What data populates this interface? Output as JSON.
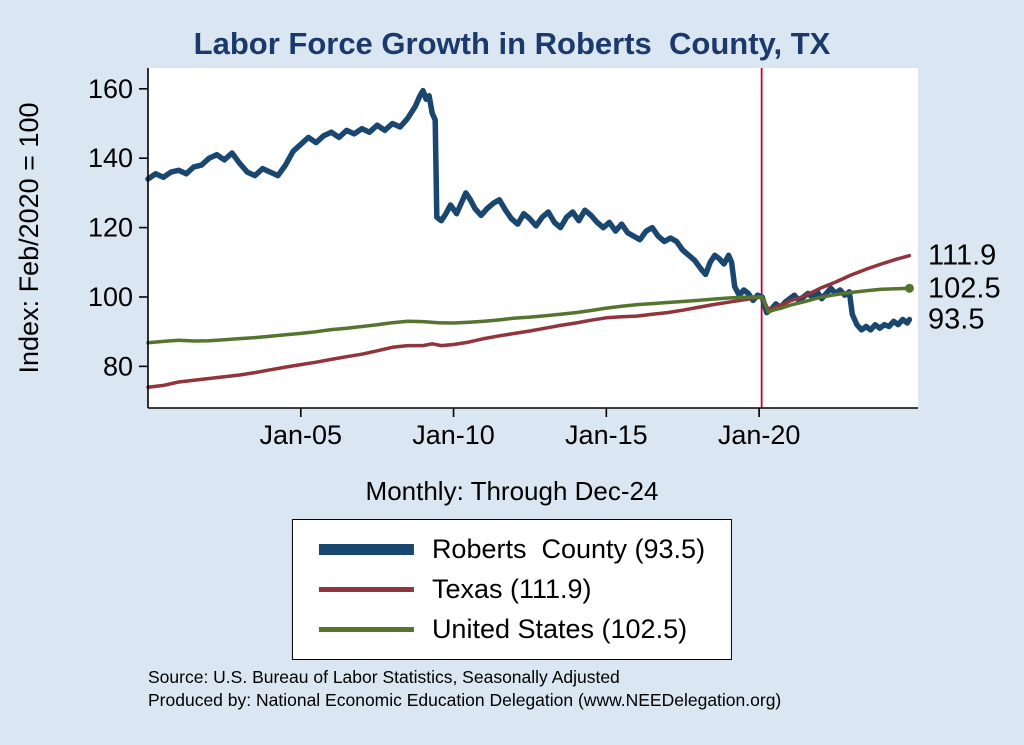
{
  "title": "Labor Force Growth in Roberts  County, TX",
  "subtitle": "Monthly: Through Dec-24",
  "ylabel": "Index: Feb/2020 = 100",
  "source": {
    "line1": "Source: U.S. Bureau of Labor Statistics, Seasonally Adjusted",
    "line2": "Produced by: National Economic Education Delegation (www.NEEDelegation.org)"
  },
  "colors": {
    "background": "#dae6f1",
    "title": "#1b3a6b",
    "axis": "#000000",
    "plot_background": "#ffffff"
  },
  "chart_data": {
    "type": "line",
    "title": "Labor Force Growth in Roberts  County, TX",
    "xlabel": "",
    "ylabel": "Index: Feb/2020 = 100",
    "xlim": [
      2000,
      2025.2
    ],
    "ylim": [
      68,
      166
    ],
    "grid": false,
    "legend_position": "bottom",
    "yticks": [
      80,
      100,
      120,
      140,
      160
    ],
    "xticks": [
      {
        "x": 2005,
        "label": "Jan-05"
      },
      {
        "x": 2010,
        "label": "Jan-10"
      },
      {
        "x": 2015,
        "label": "Jan-15"
      },
      {
        "x": 2020,
        "label": "Jan-20"
      }
    ],
    "vline": {
      "x": 2020.083,
      "color": "#c10534",
      "meaning": "Feb-2020 reference line"
    },
    "series": [
      {
        "name": "Roberts  County (93.5)",
        "color": "#1a476f",
        "width": 5.5,
        "end_label": "93.5",
        "points": [
          [
            2000.0,
            134
          ],
          [
            2000.25,
            135.5
          ],
          [
            2000.5,
            134.5
          ],
          [
            2000.75,
            136
          ],
          [
            2001.0,
            136.5
          ],
          [
            2001.25,
            135.5
          ],
          [
            2001.5,
            137.5
          ],
          [
            2001.75,
            138
          ],
          [
            2002.0,
            140
          ],
          [
            2002.25,
            141
          ],
          [
            2002.5,
            139.5
          ],
          [
            2002.75,
            141.5
          ],
          [
            2003.0,
            138.5
          ],
          [
            2003.25,
            136
          ],
          [
            2003.5,
            135
          ],
          [
            2003.75,
            137
          ],
          [
            2004.0,
            136
          ],
          [
            2004.25,
            135
          ],
          [
            2004.5,
            138
          ],
          [
            2004.75,
            142
          ],
          [
            2005.0,
            144
          ],
          [
            2005.25,
            146
          ],
          [
            2005.5,
            144.5
          ],
          [
            2005.75,
            146.5
          ],
          [
            2006.0,
            147.5
          ],
          [
            2006.25,
            146
          ],
          [
            2006.5,
            148
          ],
          [
            2006.75,
            147
          ],
          [
            2007.0,
            148.5
          ],
          [
            2007.25,
            147.5
          ],
          [
            2007.5,
            149.5
          ],
          [
            2007.75,
            148
          ],
          [
            2008.0,
            150
          ],
          [
            2008.25,
            149
          ],
          [
            2008.5,
            151.5
          ],
          [
            2008.75,
            155
          ],
          [
            2008.9,
            158
          ],
          [
            2009.0,
            159.5
          ],
          [
            2009.1,
            157
          ],
          [
            2009.2,
            158
          ],
          [
            2009.3,
            153
          ],
          [
            2009.4,
            151
          ],
          [
            2009.45,
            123
          ],
          [
            2009.6,
            122
          ],
          [
            2009.75,
            124
          ],
          [
            2009.9,
            126.5
          ],
          [
            2010.1,
            124
          ],
          [
            2010.25,
            127
          ],
          [
            2010.4,
            130
          ],
          [
            2010.55,
            128
          ],
          [
            2010.7,
            125.5
          ],
          [
            2010.9,
            123.5
          ],
          [
            2011.1,
            125.5
          ],
          [
            2011.3,
            127
          ],
          [
            2011.5,
            128
          ],
          [
            2011.7,
            125
          ],
          [
            2011.9,
            122.5
          ],
          [
            2012.1,
            121
          ],
          [
            2012.3,
            124
          ],
          [
            2012.5,
            122.5
          ],
          [
            2012.7,
            120.5
          ],
          [
            2012.9,
            123
          ],
          [
            2013.1,
            124.5
          ],
          [
            2013.3,
            121.5
          ],
          [
            2013.5,
            120
          ],
          [
            2013.7,
            123
          ],
          [
            2013.9,
            124.5
          ],
          [
            2014.1,
            122
          ],
          [
            2014.3,
            125
          ],
          [
            2014.5,
            123.5
          ],
          [
            2014.7,
            121.5
          ],
          [
            2014.9,
            120
          ],
          [
            2015.1,
            121.5
          ],
          [
            2015.3,
            119
          ],
          [
            2015.5,
            121
          ],
          [
            2015.7,
            118.5
          ],
          [
            2015.9,
            117.5
          ],
          [
            2016.1,
            116.5
          ],
          [
            2016.3,
            119
          ],
          [
            2016.5,
            120
          ],
          [
            2016.7,
            117.5
          ],
          [
            2016.9,
            116
          ],
          [
            2017.1,
            117
          ],
          [
            2017.3,
            116
          ],
          [
            2017.5,
            113.5
          ],
          [
            2017.7,
            112
          ],
          [
            2017.9,
            110.5
          ],
          [
            2018.1,
            108
          ],
          [
            2018.25,
            106.5
          ],
          [
            2018.4,
            110
          ],
          [
            2018.55,
            112
          ],
          [
            2018.7,
            111
          ],
          [
            2018.85,
            109.5
          ],
          [
            2019.0,
            112
          ],
          [
            2019.1,
            110
          ],
          [
            2019.2,
            103
          ],
          [
            2019.35,
            100.5
          ],
          [
            2019.5,
            102
          ],
          [
            2019.65,
            101
          ],
          [
            2019.8,
            99
          ],
          [
            2019.95,
            100.5
          ],
          [
            2020.1,
            100
          ],
          [
            2020.25,
            95.5
          ],
          [
            2020.4,
            96.5
          ],
          [
            2020.55,
            98
          ],
          [
            2020.7,
            97
          ],
          [
            2020.85,
            98.5
          ],
          [
            2021.0,
            99.5
          ],
          [
            2021.15,
            100.5
          ],
          [
            2021.3,
            99
          ],
          [
            2021.45,
            100
          ],
          [
            2021.6,
            101
          ],
          [
            2021.75,
            100
          ],
          [
            2021.9,
            101.5
          ],
          [
            2022.05,
            99.5
          ],
          [
            2022.2,
            101
          ],
          [
            2022.35,
            102.5
          ],
          [
            2022.5,
            101
          ],
          [
            2022.65,
            102
          ],
          [
            2022.8,
            100.5
          ],
          [
            2022.95,
            101.5
          ],
          [
            2023.05,
            95
          ],
          [
            2023.2,
            92
          ],
          [
            2023.35,
            90.5
          ],
          [
            2023.5,
            91.5
          ],
          [
            2023.65,
            90.5
          ],
          [
            2023.8,
            92
          ],
          [
            2023.95,
            91
          ],
          [
            2024.1,
            92
          ],
          [
            2024.25,
            91.5
          ],
          [
            2024.4,
            93
          ],
          [
            2024.55,
            92
          ],
          [
            2024.7,
            93.5
          ],
          [
            2024.85,
            92.5
          ],
          [
            2024.92,
            93.5
          ]
        ]
      },
      {
        "name": "Texas (111.9)",
        "color": "#90353b",
        "width": 3.5,
        "end_label": "111.9",
        "points": [
          [
            2000,
            74
          ],
          [
            2000.5,
            74.5
          ],
          [
            2001,
            75.5
          ],
          [
            2001.5,
            76
          ],
          [
            2002,
            76.5
          ],
          [
            2002.5,
            77
          ],
          [
            2003,
            77.5
          ],
          [
            2003.5,
            78.2
          ],
          [
            2004,
            79
          ],
          [
            2004.5,
            79.8
          ],
          [
            2005,
            80.5
          ],
          [
            2005.5,
            81.2
          ],
          [
            2006,
            82
          ],
          [
            2006.5,
            82.8
          ],
          [
            2007,
            83.5
          ],
          [
            2007.5,
            84.5
          ],
          [
            2008,
            85.5
          ],
          [
            2008.5,
            86
          ],
          [
            2009,
            86
          ],
          [
            2009.3,
            86.5
          ],
          [
            2009.6,
            86
          ],
          [
            2010,
            86.3
          ],
          [
            2010.5,
            87
          ],
          [
            2011,
            88
          ],
          [
            2011.5,
            88.8
          ],
          [
            2012,
            89.5
          ],
          [
            2012.5,
            90.2
          ],
          [
            2013,
            91
          ],
          [
            2013.5,
            91.8
          ],
          [
            2014,
            92.5
          ],
          [
            2014.5,
            93.3
          ],
          [
            2015,
            94
          ],
          [
            2015.5,
            94.3
          ],
          [
            2016,
            94.5
          ],
          [
            2016.5,
            95
          ],
          [
            2017,
            95.5
          ],
          [
            2017.5,
            96.2
          ],
          [
            2018,
            97
          ],
          [
            2018.5,
            97.8
          ],
          [
            2019,
            98.5
          ],
          [
            2019.5,
            99.2
          ],
          [
            2020.1,
            100
          ],
          [
            2020.3,
            96.3
          ],
          [
            2020.5,
            97
          ],
          [
            2020.8,
            98
          ],
          [
            2021,
            98.8
          ],
          [
            2021.5,
            100.3
          ],
          [
            2022,
            102.5
          ],
          [
            2022.5,
            104.3
          ],
          [
            2023,
            106.3
          ],
          [
            2023.5,
            108
          ],
          [
            2024,
            109.5
          ],
          [
            2024.5,
            110.9
          ],
          [
            2024.92,
            111.9
          ]
        ]
      },
      {
        "name": "United States (102.5)",
        "color": "#55752f",
        "width": 3.5,
        "end_label": "102.5",
        "end_dot": true,
        "points": [
          [
            2000,
            86.8
          ],
          [
            2000.5,
            87.2
          ],
          [
            2001,
            87.5
          ],
          [
            2001.5,
            87.3
          ],
          [
            2002,
            87.4
          ],
          [
            2002.5,
            87.7
          ],
          [
            2003,
            88
          ],
          [
            2003.5,
            88.3
          ],
          [
            2004,
            88.7
          ],
          [
            2004.5,
            89.1
          ],
          [
            2005,
            89.5
          ],
          [
            2005.5,
            90
          ],
          [
            2006,
            90.6
          ],
          [
            2006.5,
            91
          ],
          [
            2007,
            91.5
          ],
          [
            2007.5,
            92
          ],
          [
            2008,
            92.6
          ],
          [
            2008.5,
            93
          ],
          [
            2009,
            92.9
          ],
          [
            2009.5,
            92.6
          ],
          [
            2010,
            92.5
          ],
          [
            2010.5,
            92.7
          ],
          [
            2011,
            93
          ],
          [
            2011.5,
            93.4
          ],
          [
            2012,
            93.9
          ],
          [
            2012.5,
            94.2
          ],
          [
            2013,
            94.6
          ],
          [
            2013.5,
            95
          ],
          [
            2014,
            95.5
          ],
          [
            2014.5,
            96.1
          ],
          [
            2015,
            96.8
          ],
          [
            2015.5,
            97.3
          ],
          [
            2016,
            97.8
          ],
          [
            2016.5,
            98.1
          ],
          [
            2017,
            98.4
          ],
          [
            2017.5,
            98.7
          ],
          [
            2018,
            99
          ],
          [
            2018.5,
            99.4
          ],
          [
            2019,
            99.7
          ],
          [
            2019.5,
            99.9
          ],
          [
            2020.1,
            100
          ],
          [
            2020.3,
            95.7
          ],
          [
            2020.5,
            96.3
          ],
          [
            2020.8,
            97
          ],
          [
            2021,
            97.6
          ],
          [
            2021.5,
            98.7
          ],
          [
            2022,
            99.9
          ],
          [
            2022.5,
            100.7
          ],
          [
            2023,
            101.3
          ],
          [
            2023.5,
            101.8
          ],
          [
            2024,
            102.2
          ],
          [
            2024.5,
            102.4
          ],
          [
            2024.92,
            102.5
          ]
        ]
      }
    ]
  }
}
